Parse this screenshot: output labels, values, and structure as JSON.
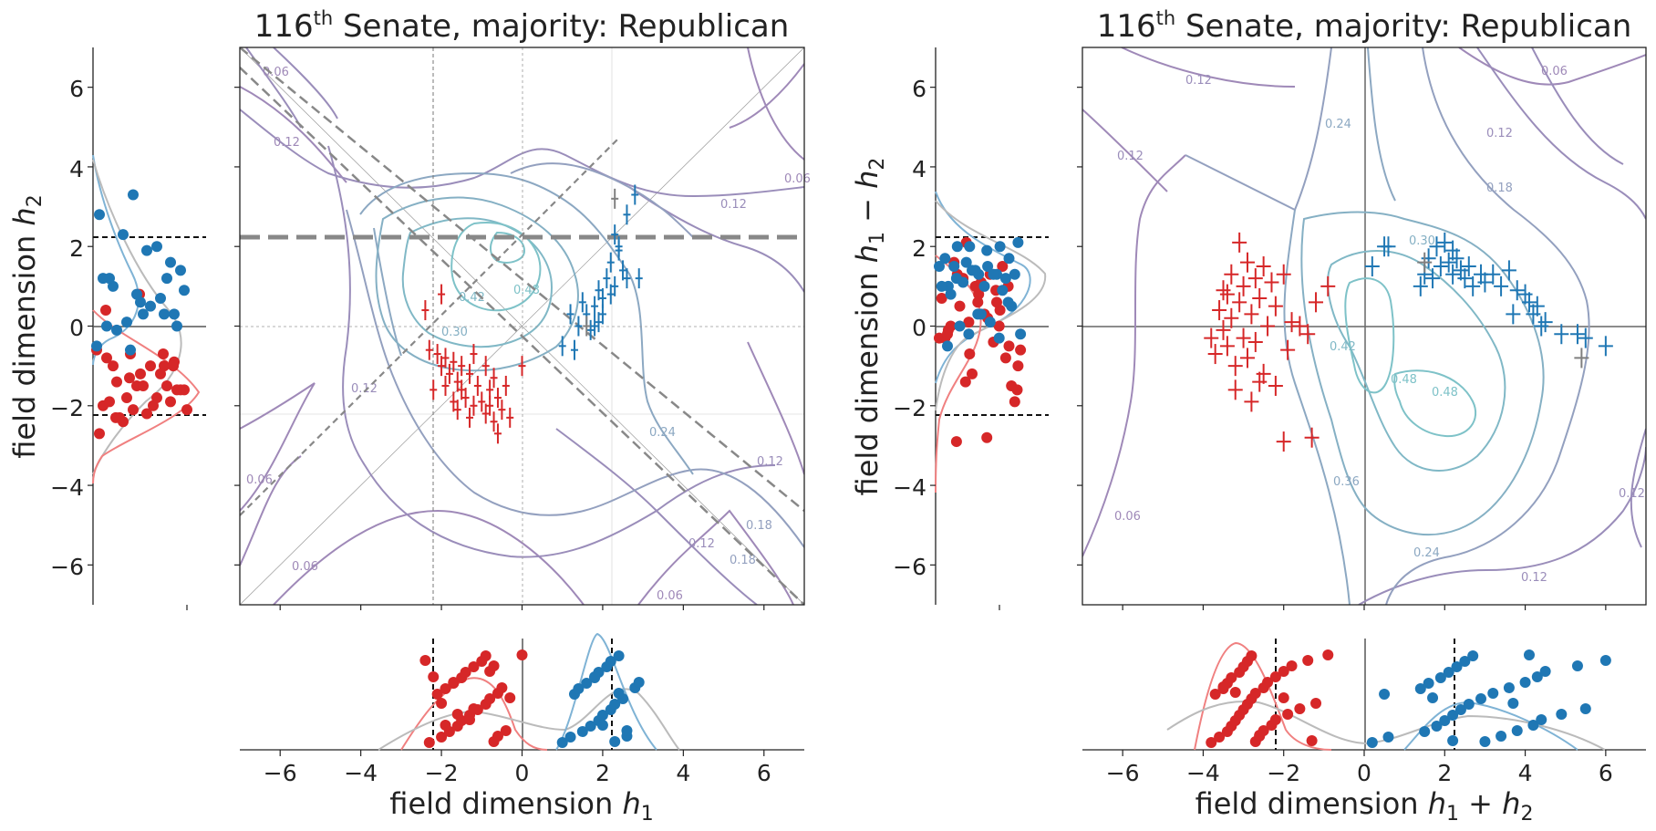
{
  "chart_data": [
    {
      "id": "left",
      "type": "scatter",
      "title_prefix": "116",
      "title_sup": "th",
      "title_rest": " Senate, majority: Republican",
      "xlabel_text": "field dimension ",
      "xlabel_var": "h",
      "xlabel_sub": "1",
      "ylabel_text": "field dimension ",
      "ylabel_var": "h",
      "ylabel_sub": "2",
      "xlim": [
        -7,
        7
      ],
      "ylim": [
        -7,
        7
      ],
      "xticks": [
        "-6",
        "-4",
        "-2",
        "0",
        "2",
        "4",
        "6"
      ],
      "yticks": [
        "6",
        "4",
        "2",
        "0",
        "-2",
        "-4",
        "-6"
      ],
      "threshold": 2.2,
      "contour_levels": [
        "0.06",
        "0.12",
        "0.12",
        "0.12",
        "0.18",
        "0.24",
        "0.30",
        "0.42",
        "0.48",
        "0.12",
        "0.18",
        "0.06",
        "0.06",
        "0.06",
        "0.12",
        "0.06"
      ],
      "series": [
        {
          "name": "Republican",
          "color": "#d62728",
          "points": [
            [
              -2.3,
              -0.6
            ],
            [
              -2.1,
              -0.7
            ],
            [
              -2.0,
              -1.0
            ],
            [
              -1.9,
              -0.8
            ],
            [
              -1.8,
              -1.2
            ],
            [
              -1.7,
              -0.9
            ],
            [
              -1.6,
              -1.4
            ],
            [
              -1.5,
              -1.0
            ],
            [
              -1.5,
              -1.6
            ],
            [
              -1.4,
              -1.8
            ],
            [
              -1.3,
              -1.2
            ],
            [
              -1.2,
              -2.0
            ],
            [
              -1.1,
              -1.5
            ],
            [
              -1.0,
              -1.9
            ],
            [
              -0.9,
              -1.0
            ],
            [
              -0.9,
              -2.2
            ],
            [
              -0.8,
              -1.6
            ],
            [
              -0.7,
              -2.4
            ],
            [
              -0.6,
              -1.8
            ],
            [
              -0.6,
              -2.7
            ],
            [
              -0.5,
              -2.1
            ],
            [
              -0.4,
              -1.5
            ],
            [
              -1.7,
              -1.9
            ],
            [
              -1.9,
              -1.5
            ],
            [
              -2.2,
              -1.6
            ],
            [
              -1.3,
              -2.3
            ],
            [
              -0.8,
              -2.0
            ],
            [
              -1.6,
              -2.1
            ],
            [
              -0.7,
              -1.3
            ],
            [
              -1.2,
              -0.7
            ],
            [
              -2.4,
              0.4
            ],
            [
              -2.0,
              0.8
            ],
            [
              0.0,
              -1.0
            ],
            [
              -0.3,
              -2.3
            ]
          ]
        },
        {
          "name": "Democrat",
          "color": "#1f77b4",
          "points": [
            [
              1.0,
              -0.5
            ],
            [
              1.3,
              -0.6
            ],
            [
              1.2,
              0.3
            ],
            [
              1.4,
              0.0
            ],
            [
              1.5,
              0.6
            ],
            [
              1.6,
              0.3
            ],
            [
              1.7,
              -0.1
            ],
            [
              1.8,
              0.5
            ],
            [
              1.9,
              0.9
            ],
            [
              1.9,
              0.1
            ],
            [
              2.0,
              0.7
            ],
            [
              2.1,
              1.2
            ],
            [
              2.2,
              0.8
            ],
            [
              2.2,
              1.6
            ],
            [
              2.3,
              1.0
            ],
            [
              2.4,
              1.9
            ],
            [
              2.5,
              1.4
            ],
            [
              2.3,
              2.3
            ],
            [
              2.4,
              2.0
            ],
            [
              2.6,
              2.8
            ],
            [
              2.8,
              3.3
            ],
            [
              2.6,
              1.2
            ],
            [
              2.9,
              1.2
            ],
            [
              2.0,
              0.3
            ],
            [
              1.8,
              0.0
            ]
          ]
        },
        {
          "name": "Independent",
          "color": "#7f7f7f",
          "points": [
            [
              2.3,
              3.2
            ],
            [
              1.6,
              0.0
            ]
          ]
        }
      ]
    },
    {
      "id": "right",
      "type": "scatter",
      "title_prefix": "116",
      "title_sup": "th",
      "title_rest": " Senate, majority: Republican",
      "xlabel_text": "field dimension ",
      "xlabel_var": "h",
      "xlabel_sub": "1",
      "xlabel_mid": " + ",
      "xlabel_var2": "h",
      "xlabel_sub2": "2",
      "ylabel_text": "field dimension ",
      "ylabel_var": "h",
      "ylabel_sub": "1",
      "ylabel_mid": " − ",
      "ylabel_var2": "h",
      "ylabel_sub2": "2",
      "xlim": [
        -7,
        7
      ],
      "ylim": [
        -7,
        7
      ],
      "xticks": [
        "-6",
        "-4",
        "-2",
        "0",
        "2",
        "4",
        "6"
      ],
      "yticks": [
        "6",
        "4",
        "2",
        "0",
        "-2",
        "-4",
        "-6"
      ],
      "threshold": 2.2,
      "contour_levels": [
        "0.12",
        "0.06",
        "0.24",
        "0.12",
        "0.18",
        "0.12",
        "0.30",
        "0.42",
        "0.48",
        "0.48",
        "0.36",
        "0.24",
        "0.12",
        "0.06",
        "0.12"
      ],
      "series": [
        {
          "name": "Republican",
          "color": "#d62728",
          "points": [
            [
              -3.8,
              -0.3
            ],
            [
              -3.7,
              -0.7
            ],
            [
              -3.6,
              0.4
            ],
            [
              -3.5,
              -0.1
            ],
            [
              -3.4,
              0.8
            ],
            [
              -3.4,
              -0.5
            ],
            [
              -3.3,
              1.3
            ],
            [
              -3.3,
              0.2
            ],
            [
              -3.2,
              -1.0
            ],
            [
              -3.1,
              2.1
            ],
            [
              -3.1,
              0.6
            ],
            [
              -3.0,
              -0.3
            ],
            [
              -3.0,
              1.0
            ],
            [
              -2.9,
              -0.8
            ],
            [
              -2.9,
              1.6
            ],
            [
              -2.8,
              0.3
            ],
            [
              -2.8,
              -1.9
            ],
            [
              -2.7,
              1.2
            ],
            [
              -2.7,
              -0.4
            ],
            [
              -2.6,
              0.7
            ],
            [
              -2.5,
              -1.2
            ],
            [
              -2.5,
              1.5
            ],
            [
              -2.4,
              0.0
            ],
            [
              -2.3,
              1.1
            ],
            [
              -2.2,
              -1.5
            ],
            [
              -2.2,
              0.5
            ],
            [
              -2.0,
              1.3
            ],
            [
              -1.9,
              -0.6
            ],
            [
              -1.8,
              0.1
            ],
            [
              -1.6,
              0.0
            ],
            [
              -1.4,
              -0.2
            ],
            [
              -1.2,
              0.6
            ],
            [
              -0.9,
              1.0
            ],
            [
              -2.0,
              -2.9
            ],
            [
              -1.3,
              -2.8
            ],
            [
              -3.2,
              -1.6
            ],
            [
              -2.6,
              -1.4
            ],
            [
              -3.5,
              0.9
            ]
          ]
        },
        {
          "name": "Democrat",
          "color": "#1f77b4",
          "points": [
            [
              0.2,
              1.5
            ],
            [
              0.5,
              2.0
            ],
            [
              0.6,
              2.0
            ],
            [
              1.4,
              1.0
            ],
            [
              1.5,
              1.3
            ],
            [
              1.6,
              1.7
            ],
            [
              1.8,
              2.0
            ],
            [
              1.9,
              1.5
            ],
            [
              2.0,
              2.1
            ],
            [
              2.1,
              1.6
            ],
            [
              2.2,
              1.3
            ],
            [
              2.3,
              1.7
            ],
            [
              2.4,
              1.4
            ],
            [
              2.5,
              1.2
            ],
            [
              2.6,
              1.5
            ],
            [
              2.7,
              1.0
            ],
            [
              2.9,
              1.3
            ],
            [
              3.0,
              1.1
            ],
            [
              3.2,
              1.3
            ],
            [
              3.4,
              1.0
            ],
            [
              3.6,
              1.4
            ],
            [
              3.8,
              0.9
            ],
            [
              4.0,
              0.8
            ],
            [
              4.2,
              0.3
            ],
            [
              4.3,
              0.5
            ],
            [
              4.4,
              0.0
            ],
            [
              4.5,
              0.1
            ],
            [
              4.9,
              -0.2
            ],
            [
              5.3,
              -0.2
            ],
            [
              5.5,
              -0.3
            ],
            [
              6.0,
              -0.5
            ],
            [
              3.7,
              0.3
            ],
            [
              4.1,
              0.6
            ],
            [
              1.7,
              1.2
            ],
            [
              2.2,
              1.9
            ]
          ]
        },
        {
          "name": "Independent",
          "color": "#7f7f7f",
          "points": [
            [
              1.5,
              1.6
            ],
            [
              5.4,
              -0.8
            ]
          ]
        }
      ]
    }
  ]
}
